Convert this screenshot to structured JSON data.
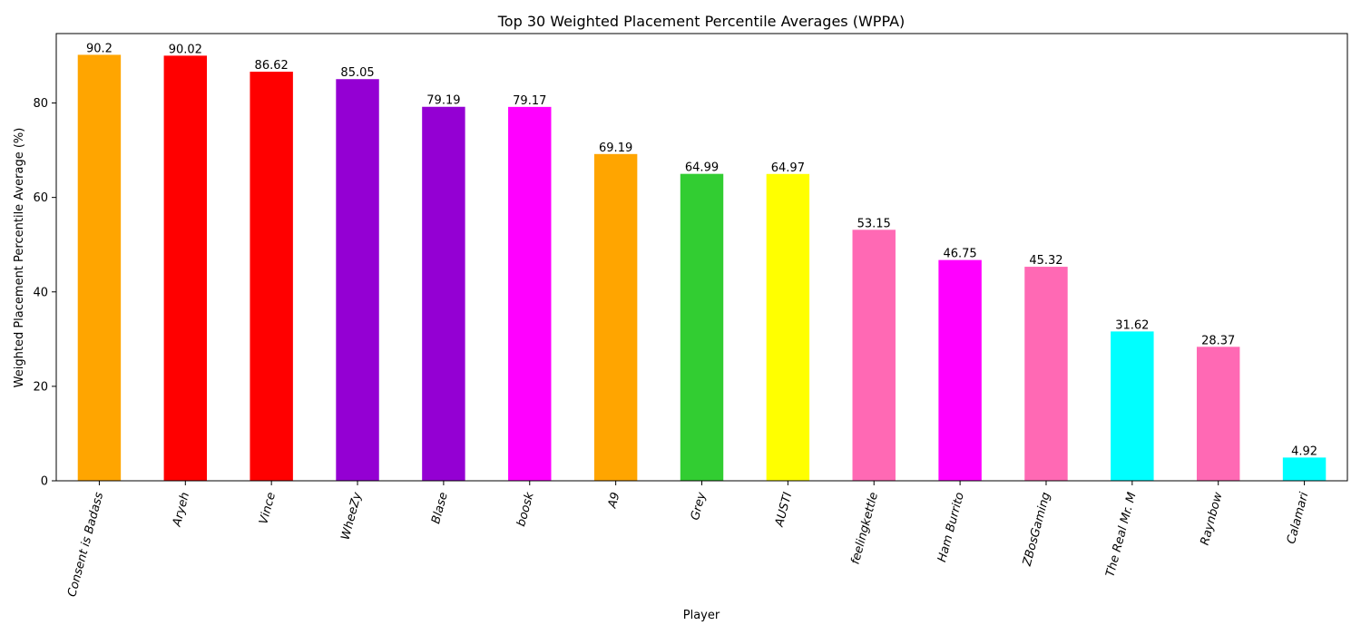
{
  "chart_data": {
    "type": "bar",
    "title": "Top 30 Weighted Placement Percentile Averages (WPPA)",
    "xlabel": "Player",
    "ylabel": "Weighted Placement Percentile Average (%)",
    "ylim": [
      0,
      94.7
    ],
    "yticks": [
      0,
      20,
      40,
      60,
      80
    ],
    "grid": false,
    "categories": [
      "Consent is Badass",
      "Aryeh",
      "Vince",
      "WheeZy",
      "Blase",
      "boosk",
      "A9",
      "Grey",
      "AUSTI",
      "feelingkettle",
      "Ham Burrito",
      "ZBosGaming",
      "The Real Mr. M",
      "Raynbow",
      "Calamari"
    ],
    "values": [
      90.2,
      90.02,
      86.62,
      85.05,
      79.19,
      79.17,
      69.19,
      64.99,
      64.97,
      53.15,
      46.75,
      45.32,
      31.62,
      28.37,
      4.92
    ],
    "value_labels": [
      "90.2",
      "90.02",
      "86.62",
      "85.05",
      "79.19",
      "79.17",
      "69.19",
      "64.99",
      "64.97",
      "53.15",
      "46.75",
      "45.32",
      "31.62",
      "28.37",
      "4.92"
    ],
    "colors": [
      "#ffa500",
      "#ff0000",
      "#ff0000",
      "#9400d3",
      "#9400d3",
      "#ff00ff",
      "#ffa500",
      "#32cd32",
      "#ffff00",
      "#ff69b4",
      "#ff00ff",
      "#ff69b4",
      "#00ffff",
      "#ff69b4",
      "#00ffff"
    ]
  }
}
